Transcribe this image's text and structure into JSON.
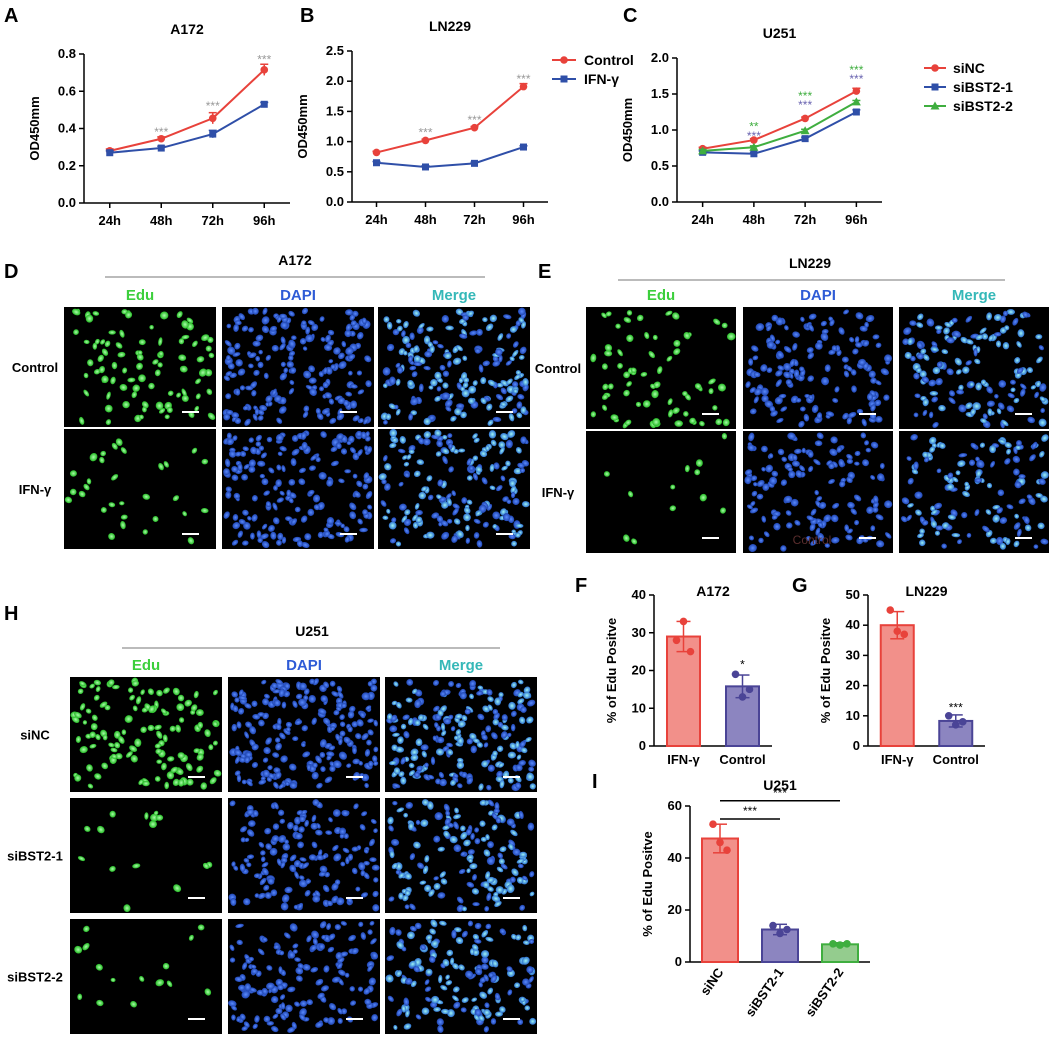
{
  "panel_labels": {
    "A": "A",
    "B": "B",
    "C": "C",
    "D": "D",
    "E": "E",
    "F": "F",
    "G": "G",
    "H": "H",
    "I": "I"
  },
  "colors": {
    "red": "#e8423b",
    "blue": "#2f4fa8",
    "green": "#3fae3f",
    "grey_star": "#999999",
    "bar_red": "#f2908a",
    "bar_purple": "#8c85c0",
    "bar_green": "#94cc8e",
    "edu": "#3ccf3c",
    "dapi": "#2e5bd6",
    "merge": "#35b8b8"
  },
  "chart_data": [
    {
      "id": "A",
      "type": "line",
      "title": "A172",
      "xlabel": "",
      "ylabel": "OD450mm",
      "categories": [
        "24h",
        "48h",
        "72h",
        "96h"
      ],
      "ylim": [
        0,
        0.8
      ],
      "yticks": [
        0.0,
        0.2,
        0.4,
        0.6,
        0.8
      ],
      "ytick_labels": [
        "0.0",
        "0.2",
        "0.4",
        "0.6",
        "0.8"
      ],
      "series": [
        {
          "name": "Control",
          "color": "#e8423b",
          "marker": "circle",
          "values": [
            0.28,
            0.345,
            0.455,
            0.715
          ],
          "err": [
            0.01,
            0.01,
            0.03,
            0.03
          ]
        },
        {
          "name": "IFN-γ",
          "color": "#2f4fa8",
          "marker": "square",
          "values": [
            0.27,
            0.295,
            0.37,
            0.53
          ],
          "err": [
            0.01,
            0.01,
            0.02,
            0.01
          ]
        }
      ],
      "annotations": [
        {
          "x": "48h",
          "text": "***",
          "y": 0.38
        },
        {
          "x": "72h",
          "text": "***",
          "y": 0.52
        },
        {
          "x": "96h",
          "text": "***",
          "y": 0.77
        }
      ]
    },
    {
      "id": "B",
      "type": "line",
      "title": "LN229",
      "xlabel": "",
      "ylabel": "OD450mm",
      "categories": [
        "24h",
        "48h",
        "72h",
        "96h"
      ],
      "ylim": [
        0,
        2.5
      ],
      "yticks": [
        0.0,
        0.5,
        1.0,
        1.5,
        2.0,
        2.5
      ],
      "ytick_labels": [
        "0.0",
        "0.5",
        "1.0",
        "1.5",
        "2.0",
        "2.5"
      ],
      "series": [
        {
          "name": "Control",
          "color": "#e8423b",
          "marker": "circle",
          "values": [
            0.82,
            1.02,
            1.23,
            1.91
          ],
          "err": [
            0.02,
            0.02,
            0.02,
            0.05
          ]
        },
        {
          "name": "IFN-γ",
          "color": "#2f4fa8",
          "marker": "square",
          "values": [
            0.65,
            0.58,
            0.64,
            0.91
          ],
          "err": [
            0.02,
            0.02,
            0.02,
            0.02
          ]
        }
      ],
      "annotations": [
        {
          "x": "48h",
          "text": "***",
          "y": 1.15
        },
        {
          "x": "72h",
          "text": "***",
          "y": 1.36
        },
        {
          "x": "96h",
          "text": "***",
          "y": 2.04
        }
      ],
      "legend": [
        "Control",
        "IFN-γ"
      ]
    },
    {
      "id": "C",
      "type": "line",
      "title": "U251",
      "xlabel": "",
      "ylabel": "OD450mm",
      "categories": [
        "24h",
        "48h",
        "72h",
        "96h"
      ],
      "ylim": [
        0,
        2.0
      ],
      "yticks": [
        0.0,
        0.5,
        1.0,
        1.5,
        2.0
      ],
      "ytick_labels": [
        "0.0",
        "0.5",
        "1.0",
        "1.5",
        "2.0"
      ],
      "series": [
        {
          "name": "siNC",
          "color": "#e8423b",
          "marker": "circle",
          "values": [
            0.74,
            0.86,
            1.16,
            1.54
          ],
          "err": [
            0.02,
            0.02,
            0.02,
            0.04
          ]
        },
        {
          "name": "siBST2-1",
          "color": "#2f4fa8",
          "marker": "square",
          "values": [
            0.69,
            0.67,
            0.88,
            1.25
          ],
          "err": [
            0.02,
            0.02,
            0.02,
            0.03
          ]
        },
        {
          "name": "siBST2-2",
          "color": "#3fae3f",
          "marker": "triangle",
          "values": [
            0.71,
            0.76,
            0.99,
            1.39
          ],
          "err": [
            0.02,
            0.02,
            0.02,
            0.02
          ]
        }
      ],
      "annotations": [
        {
          "x": "48h",
          "text": "**",
          "y": 1.05,
          "color": "#3fae3f"
        },
        {
          "x": "48h",
          "text": "***",
          "y": 0.92,
          "color": "#6a64b0"
        },
        {
          "x": "72h",
          "text": "***",
          "y": 1.47,
          "color": "#3fae3f"
        },
        {
          "x": "72h",
          "text": "***",
          "y": 1.35,
          "color": "#6a64b0"
        },
        {
          "x": "96h",
          "text": "***",
          "y": 1.83,
          "color": "#3fae3f"
        },
        {
          "x": "96h",
          "text": "***",
          "y": 1.71,
          "color": "#6a64b0"
        }
      ],
      "legend": [
        "siNC",
        "siBST2-1",
        "siBST2-2"
      ]
    },
    {
      "id": "F",
      "type": "bar",
      "title": "A172",
      "ylabel": "% of Edu Positve",
      "categories": [
        "IFN-γ",
        "Control"
      ],
      "values": [
        29,
        15.8
      ],
      "err": [
        4,
        3
      ],
      "points": [
        [
          28,
          33,
          25
        ],
        [
          19,
          13,
          15
        ]
      ],
      "colors": [
        "#f2908a",
        "#8c85c0"
      ],
      "edge": [
        "#e8423b",
        "#4a4496"
      ],
      "ylim": [
        0,
        40
      ],
      "yticks": [
        0,
        10,
        20,
        30,
        40
      ],
      "ytick_labels": [
        "0",
        "10",
        "20",
        "30",
        "40"
      ],
      "annotations": [
        {
          "cat": "Control",
          "text": "*",
          "y": 20.5
        }
      ]
    },
    {
      "id": "G",
      "type": "bar",
      "title": "LN229",
      "ylabel": "% of Edu Positve",
      "categories": [
        "IFN-γ",
        "Control"
      ],
      "values": [
        40,
        8.3
      ],
      "err": [
        4.5,
        2
      ],
      "points": [
        [
          45,
          38,
          37
        ],
        [
          10,
          7,
          8
        ]
      ],
      "colors": [
        "#f2908a",
        "#8c85c0"
      ],
      "edge": [
        "#e8423b",
        "#4a4496"
      ],
      "ylim": [
        0,
        50
      ],
      "yticks": [
        0,
        10,
        20,
        30,
        40,
        50
      ],
      "ytick_labels": [
        "0",
        "10",
        "20",
        "30",
        "40",
        "50"
      ],
      "annotations": [
        {
          "cat": "Control",
          "text": "***",
          "y": 11.5
        }
      ]
    },
    {
      "id": "I",
      "type": "bar",
      "title": "U251",
      "ylabel": "% of Edu Positve",
      "categories": [
        "siNC",
        "siBST2-1",
        "siBST2-2"
      ],
      "values": [
        47.5,
        12.5,
        6.8
      ],
      "err": [
        5.5,
        2,
        0.6
      ],
      "points": [
        [
          53,
          46,
          43
        ],
        [
          14,
          11,
          12.5
        ],
        [
          7,
          6.5,
          7
        ]
      ],
      "colors": [
        "#f2908a",
        "#8c85c0",
        "#94cc8e"
      ],
      "edge": [
        "#e8423b",
        "#4a4496",
        "#3fae3f"
      ],
      "ylim": [
        0,
        60
      ],
      "yticks": [
        0,
        20,
        40,
        60
      ],
      "ytick_labels": [
        "0",
        "20",
        "40",
        "60"
      ],
      "brackets": [
        {
          "from": "siNC",
          "to": "siBST2-1",
          "text": "***",
          "y": 55
        },
        {
          "from": "siNC",
          "to": "siBST2-2",
          "text": "***",
          "y": 62
        }
      ]
    }
  ],
  "micro_D": {
    "title": "A172",
    "columns": [
      "Edu",
      "DAPI",
      "Merge"
    ],
    "rows": [
      "Control",
      "IFN-γ"
    ]
  },
  "micro_E": {
    "title": "LN229",
    "columns": [
      "Edu",
      "DAPI",
      "Merge"
    ],
    "rows": [
      "Control",
      "IFN-γ"
    ],
    "overlay_text": "Control"
  },
  "micro_H": {
    "title": "U251",
    "columns": [
      "Edu",
      "DAPI",
      "Merge"
    ],
    "rows": [
      "siNC",
      "siBST2-1",
      "siBST2-2"
    ]
  }
}
